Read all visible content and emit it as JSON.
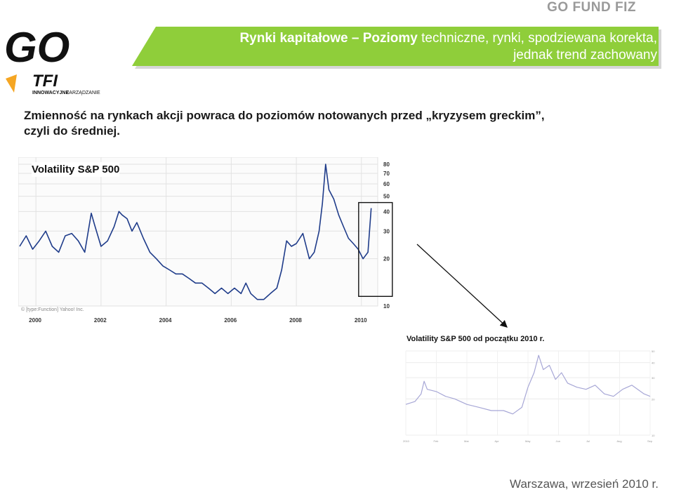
{
  "header": {
    "fund_label": "GO FUND FIZ",
    "logo_main": "GO",
    "logo_tfi": "TFI",
    "logo_tagline_bold": "INNOWACYJNE",
    "logo_tagline": "ZARZĄDZANIE",
    "title_bold": "Rynki kapitałowe – Poziomy",
    "title_rest": "techniczne, rynki, spodziewana korekta, jednak trend zachowany"
  },
  "body": {
    "headline": "Zmienność na rynkach akcji powraca do poziomów notowanych przed „kryzysem greckim”, czyli do średniej.",
    "copyright": "© [type:Function] Yahoo! Inc.",
    "footer": "Warszawa, wrzesień 2010 r."
  },
  "colors": {
    "band_green": "#8fce3a",
    "band_shadow": "#d6d6d6",
    "series_blue": "#1f3c8a",
    "series_light": "#a7a7d6",
    "grid": "#e2e2e2"
  },
  "chart_data": [
    {
      "type": "line",
      "title": "Volatility S&P 500",
      "xlabel": "",
      "ylabel": "",
      "xlim": [
        1999.5,
        2010.5
      ],
      "ylim": [
        10,
        80
      ],
      "y_scale": "log",
      "yticks": [
        10,
        20,
        30,
        40,
        50,
        60,
        70,
        80
      ],
      "xticks": [
        "2000",
        "2002",
        "2004",
        "2006",
        "2008",
        "2010"
      ],
      "tick_years": [
        2000,
        2002,
        2004,
        2006,
        2008,
        2010
      ],
      "grid": true,
      "series": [
        {
          "x": [
            1999.5,
            1999.7,
            1999.9,
            2000.1,
            2000.3,
            2000.5,
            2000.7,
            2000.9,
            2001.1,
            2001.3,
            2001.5,
            2001.7,
            2001.8,
            2002.0,
            2002.2,
            2002.4,
            2002.55,
            2002.65,
            2002.8,
            2002.95,
            2003.1,
            2003.3,
            2003.5,
            2003.7,
            2003.9,
            2004.1,
            2004.3,
            2004.5,
            2004.7,
            2004.9,
            2005.1,
            2005.3,
            2005.5,
            2005.7,
            2005.9,
            2006.1,
            2006.3,
            2006.45,
            2006.6,
            2006.8,
            2007.0,
            2007.2,
            2007.4,
            2007.55,
            2007.7,
            2007.85,
            2008.0,
            2008.2,
            2008.4,
            2008.55,
            2008.7,
            2008.8,
            2008.9,
            2009.0,
            2009.15,
            2009.3,
            2009.45,
            2009.6,
            2009.75,
            2009.9,
            2010.05,
            2010.2,
            2010.3
          ],
          "y": [
            24,
            28,
            23,
            26,
            30,
            24,
            22,
            28,
            29,
            26,
            22,
            39,
            33,
            24,
            26,
            32,
            40,
            38,
            36,
            30,
            34,
            27,
            22,
            20,
            18,
            17,
            16,
            16,
            15,
            14,
            14,
            13,
            12,
            13,
            12,
            13,
            12,
            14,
            12,
            11,
            11,
            12,
            13,
            17,
            26,
            24,
            25,
            29,
            20,
            22,
            30,
            45,
            80,
            55,
            48,
            38,
            32,
            27,
            25,
            23,
            20,
            22,
            42
          ]
        }
      ]
    },
    {
      "type": "line",
      "title": "Volatility S&P 500 od początku 2010 r.",
      "xlabel": "",
      "ylabel": "",
      "xlim": [
        0,
        8
      ],
      "ylim": [
        10,
        50
      ],
      "y_scale": "log",
      "xticks": [
        "2010",
        "Feb",
        "Mar",
        "Apr",
        "May",
        "Jun",
        "Jul",
        "Aug",
        "Sep"
      ],
      "yticks": [
        10,
        20,
        30,
        40,
        50
      ],
      "grid": true,
      "series": [
        {
          "x": [
            0,
            0.3,
            0.5,
            0.6,
            0.7,
            1.0,
            1.3,
            1.6,
            2.0,
            2.4,
            2.8,
            3.2,
            3.5,
            3.8,
            4.0,
            4.2,
            4.35,
            4.5,
            4.7,
            4.9,
            5.1,
            5.3,
            5.6,
            5.9,
            6.2,
            6.5,
            6.8,
            7.1,
            7.4,
            7.8,
            8.0
          ],
          "y": [
            18,
            19,
            22,
            28,
            24,
            23,
            21,
            20,
            18,
            17,
            16,
            16,
            15,
            17,
            25,
            33,
            46,
            35,
            38,
            29,
            33,
            27,
            25,
            24,
            26,
            22,
            21,
            24,
            26,
            22,
            21
          ]
        }
      ]
    }
  ]
}
